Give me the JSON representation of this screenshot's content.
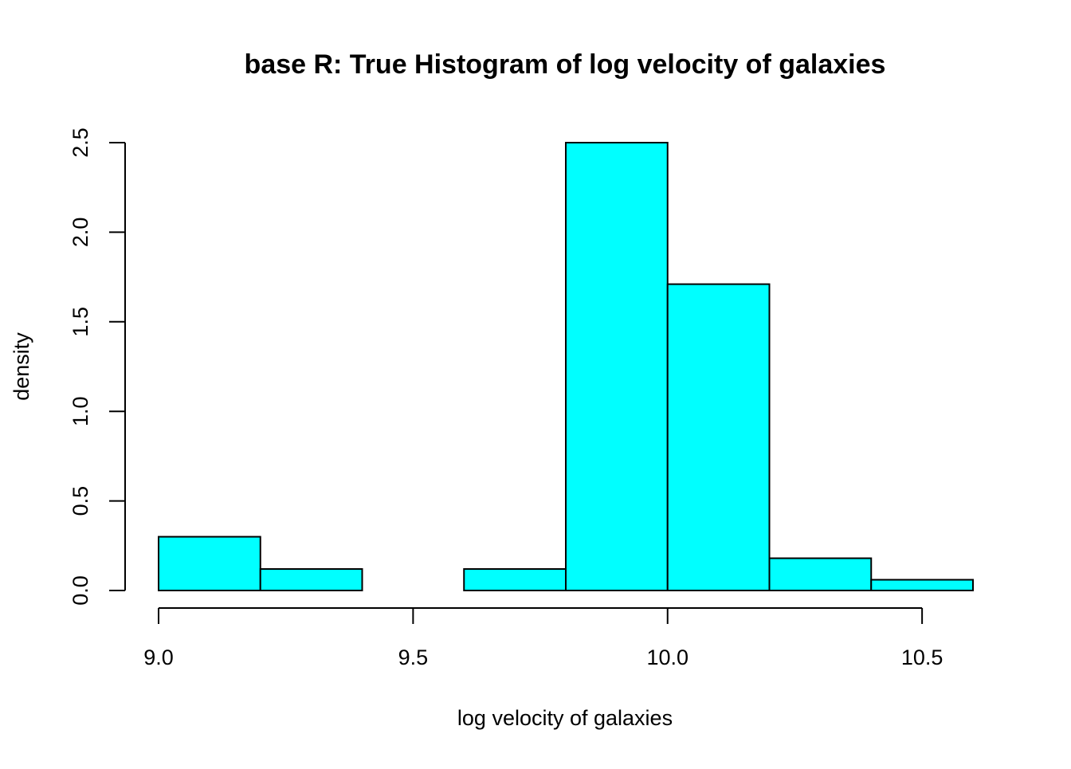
{
  "chart_data": {
    "type": "bar",
    "subtype": "histogram",
    "title": "base R: True Histogram of log velocity of galaxies",
    "xlabel": "log velocity of galaxies",
    "ylabel": "density",
    "xlim": [
      9.0,
      10.6
    ],
    "ylim": [
      0,
      2.5
    ],
    "bin_edges": [
      9.0,
      9.2,
      9.4,
      9.6,
      9.8,
      10.0,
      10.2,
      10.4,
      10.6
    ],
    "values": [
      0.3,
      0.12,
      0.0,
      0.12,
      2.5,
      1.71,
      0.18,
      0.06
    ],
    "x_ticks": [
      {
        "value": 9.0,
        "label": "9.0"
      },
      {
        "value": 9.5,
        "label": "9.5"
      },
      {
        "value": 10.0,
        "label": "10.0"
      },
      {
        "value": 10.5,
        "label": "10.5"
      }
    ],
    "y_ticks": [
      {
        "value": 0.0,
        "label": "0.0"
      },
      {
        "value": 0.5,
        "label": "0.5"
      },
      {
        "value": 1.0,
        "label": "1.0"
      },
      {
        "value": 1.5,
        "label": "1.5"
      },
      {
        "value": 2.0,
        "label": "2.0"
      },
      {
        "value": 2.5,
        "label": "2.5"
      }
    ],
    "colors": {
      "bar_fill": "#00FFFF",
      "bar_stroke": "#000000",
      "axis": "#000000"
    }
  }
}
